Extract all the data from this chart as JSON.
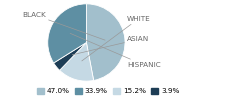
{
  "labels": [
    "BLACK",
    "WHITE",
    "ASIAN",
    "HISPANIC"
  ],
  "values": [
    47.0,
    15.2,
    3.9,
    33.9
  ],
  "colors": [
    "#a2bfcc",
    "#c5d9e4",
    "#1d3d55",
    "#5e8fa3"
  ],
  "startangle": 90,
  "counterclock": false,
  "legend_labels": [
    "47.0%",
    "33.9%",
    "15.2%",
    "3.9%"
  ],
  "legend_colors": [
    "#a2bfcc",
    "#5e8fa3",
    "#c5d9e4",
    "#1d3d55"
  ],
  "label_fontsize": 5.2,
  "legend_fontsize": 5.2,
  "label_color": "#666666",
  "line_color": "#999999"
}
